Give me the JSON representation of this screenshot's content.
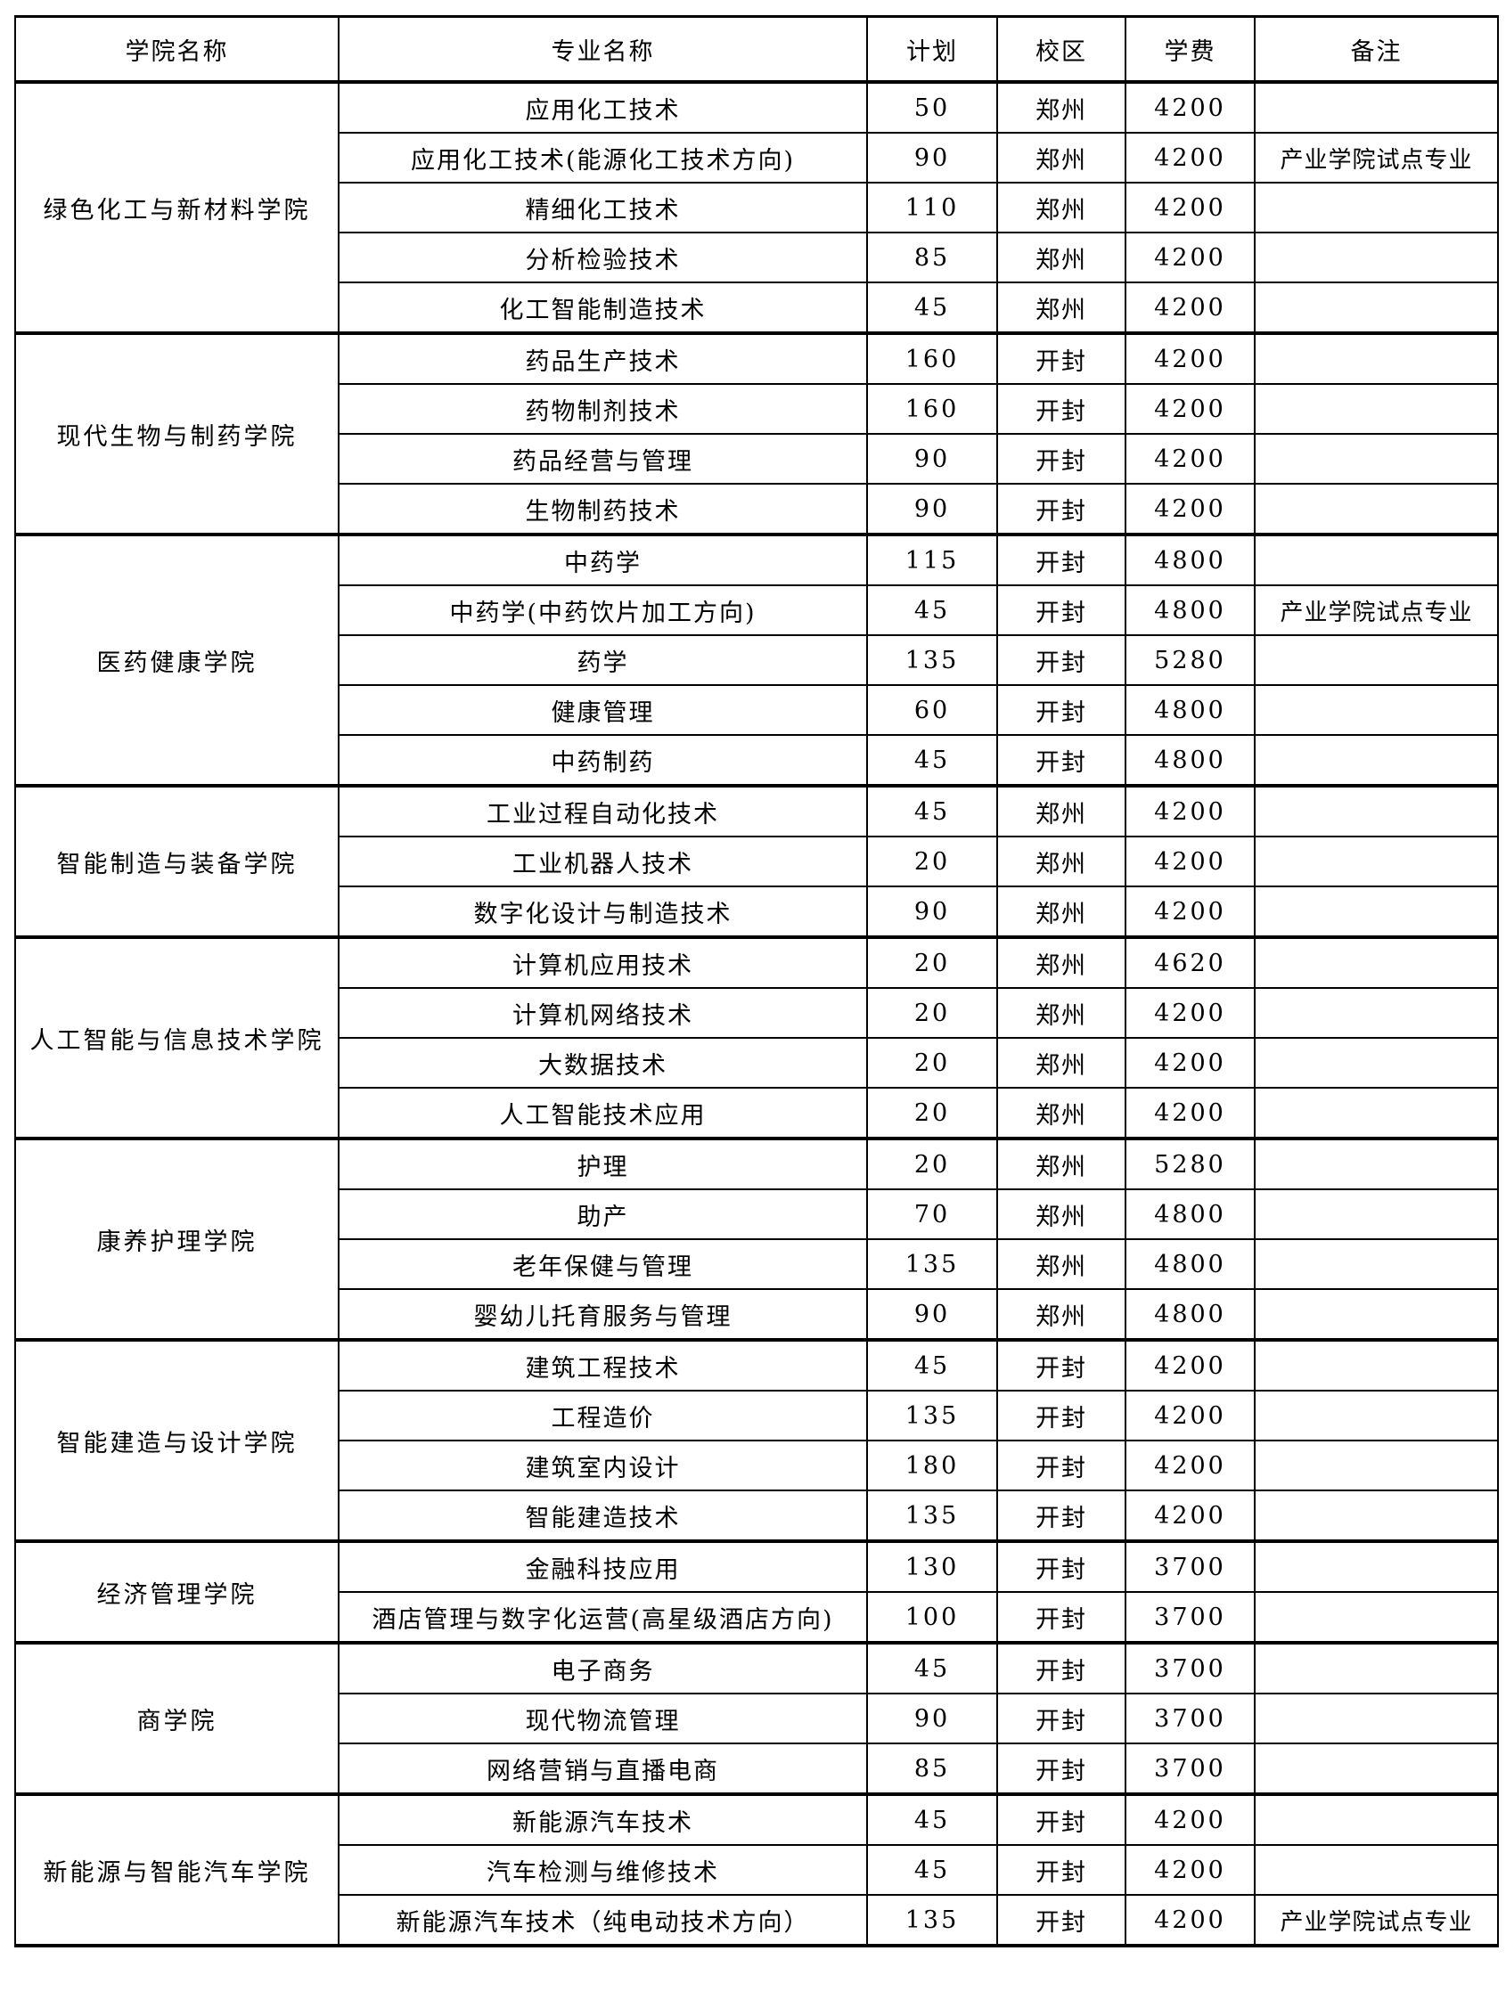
{
  "headers": [
    "学院名称",
    "专业名称",
    "计划",
    "校区",
    "学费",
    "备注"
  ],
  "colleges": [
    {
      "name": "绿色化工与新材料学院",
      "majors": [
        {
          "major": "应用化工技术",
          "plan": "50",
          "campus": "郑州",
          "fee": "4200",
          "note": ""
        },
        {
          "major": "应用化工技术(能源化工技术方向)",
          "plan": "90",
          "campus": "郑州",
          "fee": "4200",
          "note": "产业学院试点专业"
        },
        {
          "major": "精细化工技术",
          "plan": "110",
          "campus": "郑州",
          "fee": "4200",
          "note": ""
        },
        {
          "major": "分析检验技术",
          "plan": "85",
          "campus": "郑州",
          "fee": "4200",
          "note": ""
        },
        {
          "major": "化工智能制造技术",
          "plan": "45",
          "campus": "郑州",
          "fee": "4200",
          "note": ""
        }
      ]
    },
    {
      "name": "现代生物与制药学院",
      "majors": [
        {
          "major": "药品生产技术",
          "plan": "160",
          "campus": "开封",
          "fee": "4200",
          "note": ""
        },
        {
          "major": "药物制剂技术",
          "plan": "160",
          "campus": "开封",
          "fee": "4200",
          "note": ""
        },
        {
          "major": "药品经营与管理",
          "plan": "90",
          "campus": "开封",
          "fee": "4200",
          "note": ""
        },
        {
          "major": "生物制药技术",
          "plan": "90",
          "campus": "开封",
          "fee": "4200",
          "note": ""
        }
      ]
    },
    {
      "name": "医药健康学院",
      "majors": [
        {
          "major": "中药学",
          "plan": "115",
          "campus": "开封",
          "fee": "4800",
          "note": ""
        },
        {
          "major": "中药学(中药饮片加工方向)",
          "plan": "45",
          "campus": "开封",
          "fee": "4800",
          "note": "产业学院试点专业"
        },
        {
          "major": "药学",
          "plan": "135",
          "campus": "开封",
          "fee": "5280",
          "note": ""
        },
        {
          "major": "健康管理",
          "plan": "60",
          "campus": "开封",
          "fee": "4800",
          "note": ""
        },
        {
          "major": "中药制药",
          "plan": "45",
          "campus": "开封",
          "fee": "4800",
          "note": ""
        }
      ]
    },
    {
      "name": "智能制造与装备学院",
      "majors": [
        {
          "major": "工业过程自动化技术",
          "plan": "45",
          "campus": "郑州",
          "fee": "4200",
          "note": ""
        },
        {
          "major": "工业机器人技术",
          "plan": "20",
          "campus": "郑州",
          "fee": "4200",
          "note": ""
        },
        {
          "major": "数字化设计与制造技术",
          "plan": "90",
          "campus": "郑州",
          "fee": "4200",
          "note": ""
        }
      ]
    },
    {
      "name": "人工智能与信息技术学院",
      "majors": [
        {
          "major": "计算机应用技术",
          "plan": "20",
          "campus": "郑州",
          "fee": "4620",
          "note": ""
        },
        {
          "major": "计算机网络技术",
          "plan": "20",
          "campus": "郑州",
          "fee": "4200",
          "note": ""
        },
        {
          "major": "大数据技术",
          "plan": "20",
          "campus": "郑州",
          "fee": "4200",
          "note": ""
        },
        {
          "major": "人工智能技术应用",
          "plan": "20",
          "campus": "郑州",
          "fee": "4200",
          "note": ""
        }
      ]
    },
    {
      "name": "康养护理学院",
      "majors": [
        {
          "major": "护理",
          "plan": "20",
          "campus": "郑州",
          "fee": "5280",
          "note": ""
        },
        {
          "major": "助产",
          "plan": "70",
          "campus": "郑州",
          "fee": "4800",
          "note": ""
        },
        {
          "major": "老年保健与管理",
          "plan": "135",
          "campus": "郑州",
          "fee": "4800",
          "note": ""
        },
        {
          "major": "婴幼儿托育服务与管理",
          "plan": "90",
          "campus": "郑州",
          "fee": "4800",
          "note": ""
        }
      ]
    },
    {
      "name": "智能建造与设计学院",
      "majors": [
        {
          "major": "建筑工程技术",
          "plan": "45",
          "campus": "开封",
          "fee": "4200",
          "note": ""
        },
        {
          "major": "工程造价",
          "plan": "135",
          "campus": "开封",
          "fee": "4200",
          "note": ""
        },
        {
          "major": "建筑室内设计",
          "plan": "180",
          "campus": "开封",
          "fee": "4200",
          "note": ""
        },
        {
          "major": "智能建造技术",
          "plan": "135",
          "campus": "开封",
          "fee": "4200",
          "note": ""
        }
      ]
    },
    {
      "name": "经济管理学院",
      "majors": [
        {
          "major": "金融科技应用",
          "plan": "130",
          "campus": "开封",
          "fee": "3700",
          "note": ""
        },
        {
          "major": "酒店管理与数字化运营(高星级酒店方向)",
          "plan": "100",
          "campus": "开封",
          "fee": "3700",
          "note": ""
        }
      ]
    },
    {
      "name": "商学院",
      "majors": [
        {
          "major": "电子商务",
          "plan": "45",
          "campus": "开封",
          "fee": "3700",
          "note": ""
        },
        {
          "major": "现代物流管理",
          "plan": "90",
          "campus": "开封",
          "fee": "3700",
          "note": ""
        },
        {
          "major": "网络营销与直播电商",
          "plan": "85",
          "campus": "开封",
          "fee": "3700",
          "note": ""
        }
      ]
    },
    {
      "name": "新能源与智能汽车学院",
      "majors": [
        {
          "major": "新能源汽车技术",
          "plan": "45",
          "campus": "开封",
          "fee": "4200",
          "note": ""
        },
        {
          "major": "汽车检测与维修技术",
          "plan": "45",
          "campus": "开封",
          "fee": "4200",
          "note": ""
        },
        {
          "major": "新能源汽车技术（纯电动技术方向）",
          "plan": "135",
          "campus": "开封",
          "fee": "4200",
          "note": "产业学院试点专业"
        }
      ]
    }
  ]
}
